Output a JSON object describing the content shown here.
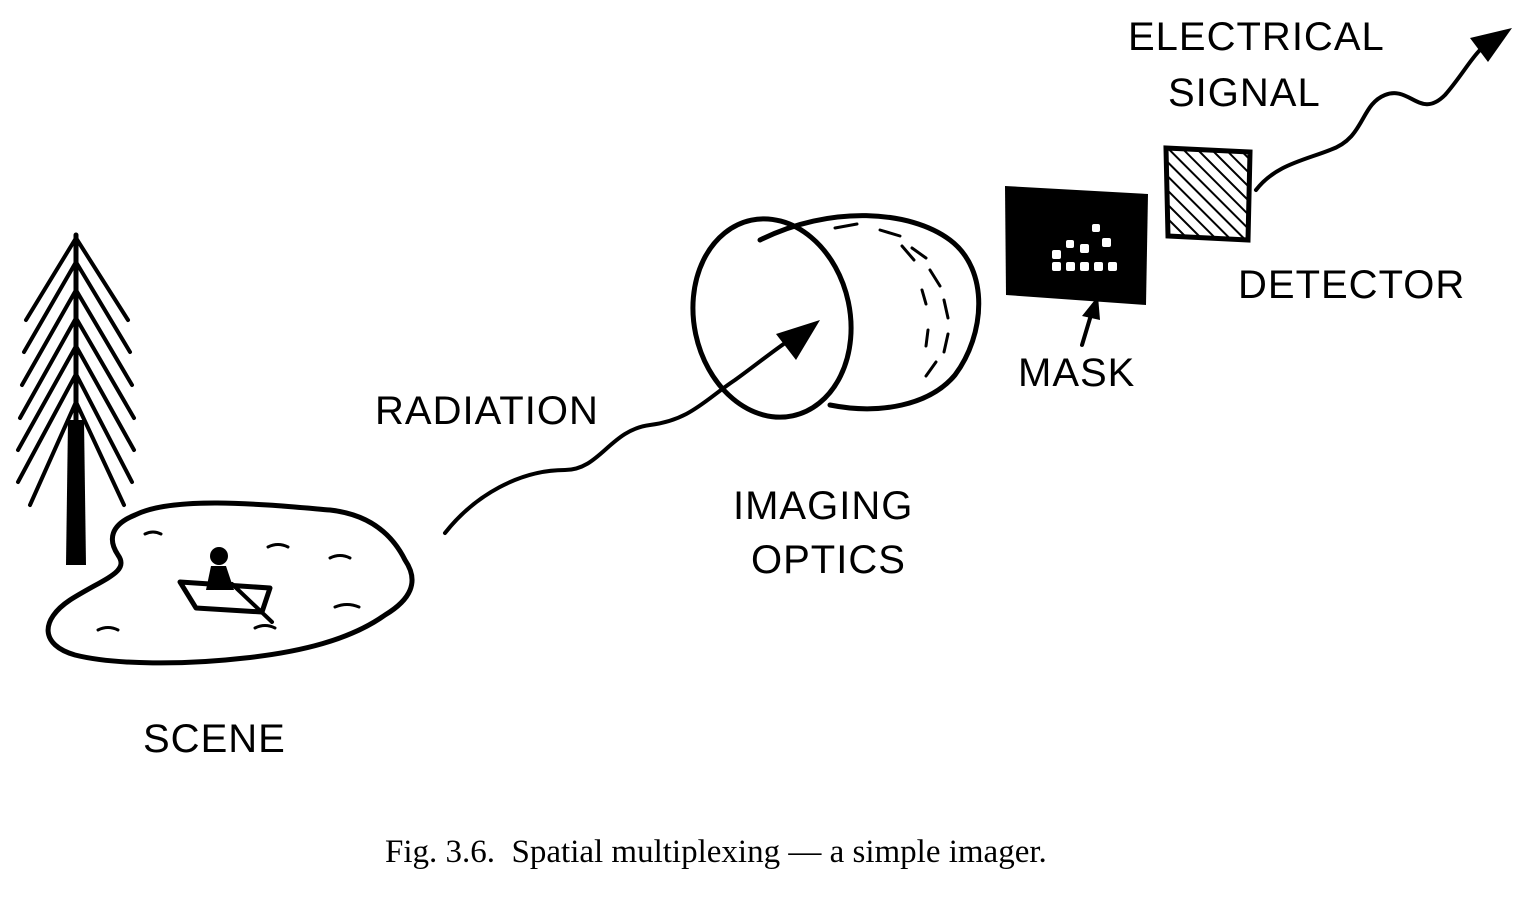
{
  "labels": {
    "electrical_signal_line1": "ELECTRICAL",
    "electrical_signal_line2": "SIGNAL",
    "detector": "DETECTOR",
    "mask": "MASK",
    "radiation": "RADIATION",
    "imaging_optics_line1": "IMAGING",
    "imaging_optics_line2": "OPTICS",
    "scene": "SCENE"
  },
  "caption": "Fig. 3.6.  Spatial multiplexing — a simple imager.",
  "colors": {
    "ink": "#000000",
    "paper": "#ffffff"
  }
}
